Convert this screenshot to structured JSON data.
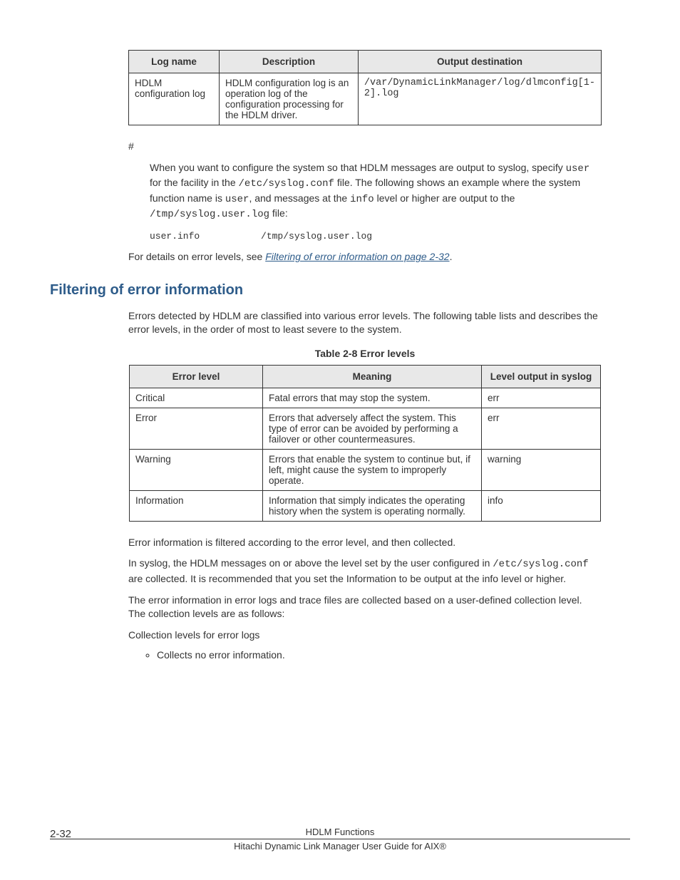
{
  "table1": {
    "headers": [
      "Log name",
      "Description",
      "Output destination"
    ],
    "row": {
      "name": "HDLM configuration log",
      "desc": "HDLM configuration log is an operation log of the configuration processing for the HDLM driver.",
      "dest": "/var/DynamicLinkManager/log/dlmconfig[1-2].log"
    }
  },
  "hash": "#",
  "para1": {
    "t1": "When you want to configure the system so that HDLM messages are output to syslog, specify ",
    "c1": "user",
    "t2": " for the facility in the ",
    "c2": "/etc/syslog.conf",
    "t3": " file. The following shows an example where the system function name is ",
    "c3": "user",
    "t4": ", and messages at the ",
    "c4": "info",
    "t5": " level or higher are output to the ",
    "c5": "/tmp/syslog.user.log",
    "t6": " file:"
  },
  "preline": "user.info           /tmp/syslog.user.log",
  "para2": {
    "t1": "For details on error levels, see ",
    "link": "Filtering of error information on page 2-32",
    "t2": "."
  },
  "heading": "Filtering of error information",
  "para3": "Errors detected by HDLM are classified into various error levels. The following table lists and describes the error levels, in the order of most to least severe to the system.",
  "table2": {
    "caption": "Table 2-8 Error levels",
    "headers": [
      "Error level",
      "Meaning",
      "Level output in syslog"
    ],
    "rows": [
      {
        "level": "Critical",
        "meaning": "Fatal errors that may stop the system.",
        "out": "err"
      },
      {
        "level": "Error",
        "meaning": "Errors that adversely affect the system. This type of error can be avoided by performing a failover or other countermeasures.",
        "out": "err"
      },
      {
        "level": "Warning",
        "meaning": "Errors that enable the system to continue but, if left, might cause the system to improperly operate.",
        "out": "warning"
      },
      {
        "level": "Information",
        "meaning": "Information that simply indicates the operating history when the system is operating normally.",
        "out": "info"
      }
    ]
  },
  "para4": "Error information is filtered according to the error level, and then collected.",
  "para5": {
    "t1": "In syslog, the HDLM messages on or above the level set by the user configured in ",
    "c1": "/etc/syslog.conf",
    "t2": " are collected. It is recommended that you set the Information to be output at the info level or higher."
  },
  "para6": "The error information in error logs and trace files are collected based on a user-defined collection level. The collection levels are as follows:",
  "para7": "Collection levels for error logs",
  "bullet1": "Collects no error information.",
  "footer": {
    "page": "2-32",
    "title": "HDLM Functions",
    "sub": "Hitachi Dynamic Link Manager User Guide for AIX®"
  }
}
